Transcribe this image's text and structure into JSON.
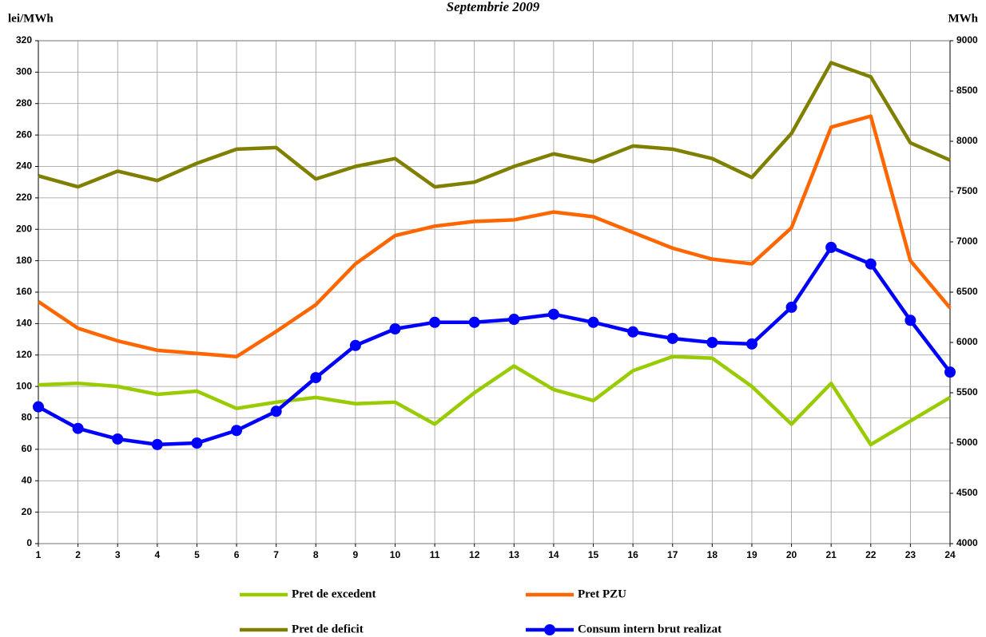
{
  "chart_data": {
    "type": "line",
    "title": "Septembrie 2009",
    "ylabel": "lei/MWh",
    "y2label": "MWh",
    "x": [
      1,
      2,
      3,
      4,
      5,
      6,
      7,
      8,
      9,
      10,
      11,
      12,
      13,
      14,
      15,
      16,
      17,
      18,
      19,
      20,
      21,
      22,
      23,
      24
    ],
    "xlim": [
      1,
      24
    ],
    "xticks": [
      1,
      2,
      3,
      4,
      5,
      6,
      7,
      8,
      9,
      10,
      11,
      12,
      13,
      14,
      15,
      16,
      17,
      18,
      19,
      20,
      21,
      22,
      23,
      24
    ],
    "ylim": [
      0,
      320
    ],
    "yticks": [
      0,
      20,
      40,
      60,
      80,
      100,
      120,
      140,
      160,
      180,
      200,
      220,
      240,
      260,
      280,
      300,
      320
    ],
    "y2lim": [
      4000,
      9000
    ],
    "y2ticks": [
      4000,
      4500,
      5000,
      5500,
      6000,
      6500,
      7000,
      7500,
      8000,
      8500,
      9000
    ],
    "grid": true,
    "legend": "bottom",
    "series": [
      {
        "name": "Pret de excedent",
        "color": "#99cc00",
        "values": [
          101,
          102,
          100,
          95,
          97,
          86,
          90,
          93,
          89,
          90,
          76,
          96,
          113,
          98,
          91,
          110,
          119,
          118,
          100,
          76,
          102,
          63,
          78,
          93
        ]
      },
      {
        "name": "Pret PZU",
        "color": "#ff6600",
        "values": [
          154,
          137,
          129,
          123,
          121,
          119,
          135,
          152,
          178,
          196,
          202,
          205,
          206,
          211,
          208,
          198,
          188,
          181,
          178,
          201,
          265,
          272,
          180,
          150
        ]
      },
      {
        "name": "Pret de deficit",
        "color": "#808000",
        "values": [
          234,
          227,
          237,
          231,
          242,
          251,
          252,
          232,
          240,
          245,
          227,
          230,
          240,
          248,
          243,
          253,
          251,
          245,
          233,
          261,
          306,
          297,
          255,
          244
        ]
      },
      {
        "name": "Consum intern brut realizat",
        "color": "#0000ff",
        "axis": "y2",
        "marker": "circle",
        "values": [
          5360,
          5145,
          5040,
          4985,
          5000,
          5125,
          5315,
          5650,
          5970,
          6135,
          6200,
          6200,
          6230,
          6280,
          6200,
          6105,
          6040,
          6000,
          5985,
          6350,
          6945,
          6780,
          6220,
          5705
        ]
      }
    ]
  }
}
